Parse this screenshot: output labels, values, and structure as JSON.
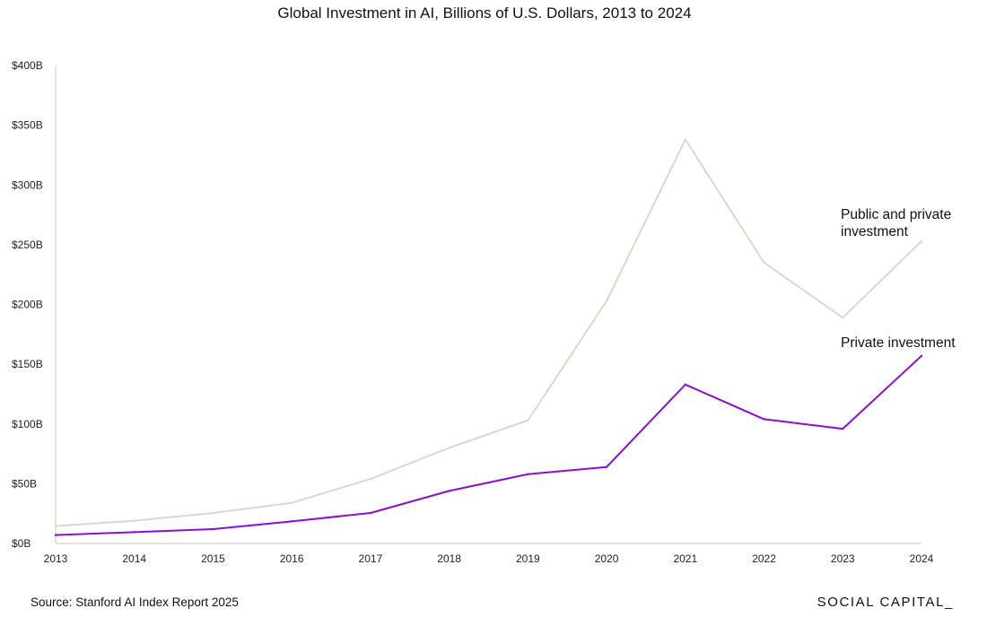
{
  "chart_data": {
    "type": "line",
    "title": "Global Investment in AI, Billions of U.S. Dollars, 2013 to 2024",
    "xlabel": "",
    "ylabel": "",
    "x": [
      "2013",
      "2014",
      "2015",
      "2016",
      "2017",
      "2018",
      "2019",
      "2020",
      "2021",
      "2022",
      "2023",
      "2024"
    ],
    "ylim": [
      0,
      400
    ],
    "y_ticks": [
      0,
      50,
      100,
      150,
      200,
      250,
      300,
      350,
      400
    ],
    "y_tick_labels": [
      "$0B",
      "$50B",
      "$100B",
      "$150B",
      "$200B",
      "$250B",
      "$300B",
      "$350B",
      "$400B"
    ],
    "grid": false,
    "legend": "none",
    "series": [
      {
        "name": "Public and private investment",
        "color": "#dcd8cf",
        "values": [
          14.5,
          19,
          25.5,
          34,
          54,
          80,
          103,
          203,
          338,
          235,
          189,
          253
        ]
      },
      {
        "name": "Private investment",
        "color": "#8a0fd6",
        "values": [
          7,
          9.5,
          12,
          18.5,
          25.5,
          44,
          58,
          64,
          133,
          104,
          96,
          157
        ]
      }
    ],
    "annotations": [
      {
        "lines": [
          "Public and private",
          "investment"
        ],
        "series": "Public and private investment"
      },
      {
        "lines": [
          "Private investment"
        ],
        "series": "Private investment"
      }
    ]
  },
  "footer": {
    "source": "Source:  Stanford AI Index Report 2025",
    "brand": "SOCIAL CAPITAL_"
  }
}
